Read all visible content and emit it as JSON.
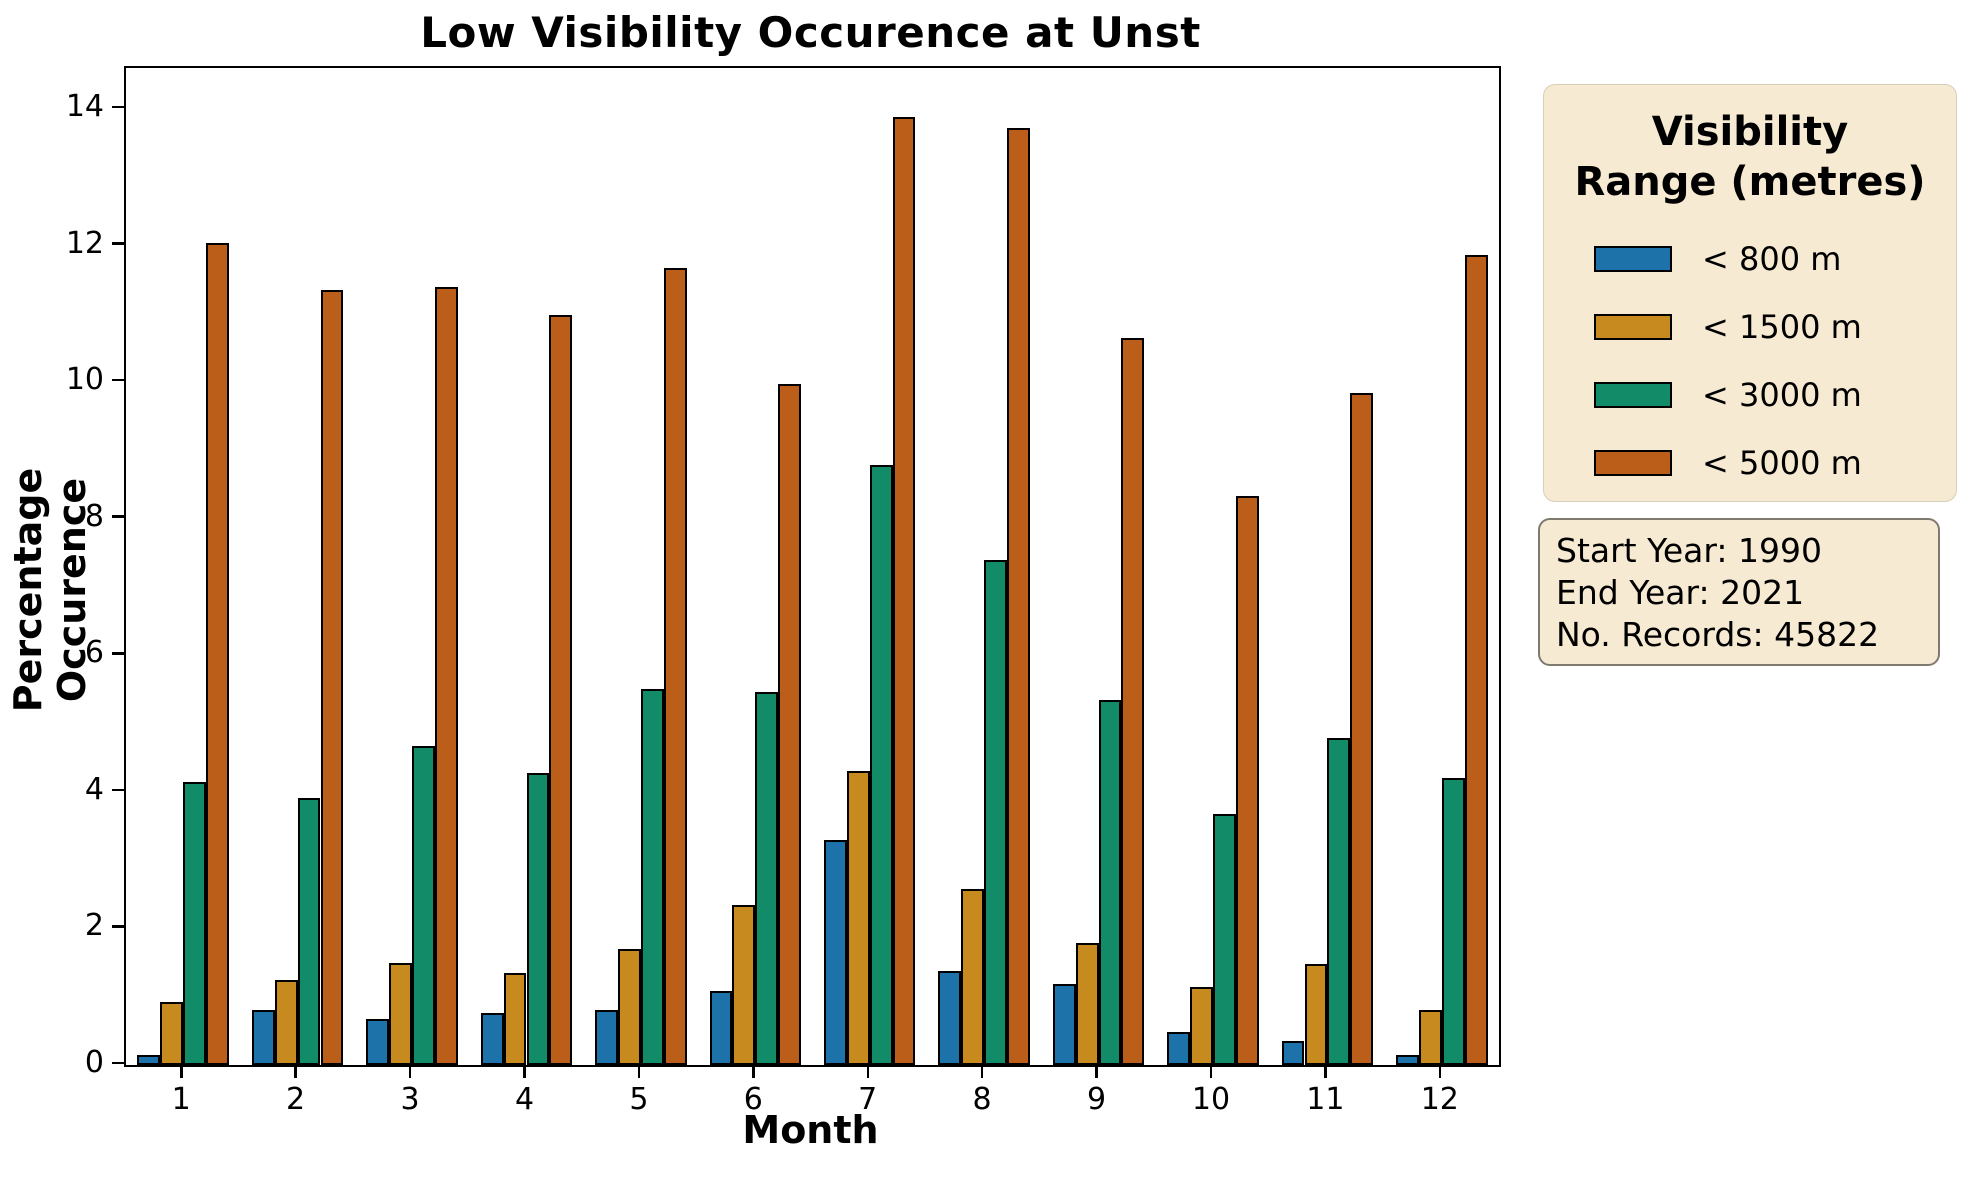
{
  "title": "Low Visibility Occurence at Unst",
  "xlabel": "Month",
  "ylabel": "Percentage Occurence",
  "legend": {
    "title": "Visibility\nRange (metres)",
    "items": [
      {
        "label": "< 800 m",
        "color": "#1d72a9"
      },
      {
        "label": "< 1500 m",
        "color": "#c68a1e"
      },
      {
        "label": "< 3000 m",
        "color": "#128c68"
      },
      {
        "label": "< 5000 m",
        "color": "#ba5e19"
      }
    ]
  },
  "info_box": {
    "lines": [
      "Start Year: 1990",
      "End Year: 2021",
      "No. Records: 45822"
    ]
  },
  "chart_data": {
    "type": "bar",
    "title": "Low Visibility Occurence at Unst",
    "xlabel": "Month",
    "ylabel": "Percentage Occurence",
    "categories": [
      "1",
      "2",
      "3",
      "4",
      "5",
      "6",
      "7",
      "8",
      "9",
      "10",
      "11",
      "12"
    ],
    "series": [
      {
        "name": "< 800 m",
        "color": "#1d72a9",
        "values": [
          0.15,
          0.8,
          0.67,
          0.76,
          0.81,
          1.09,
          3.29,
          1.37,
          1.18,
          0.48,
          0.35,
          0.14
        ]
      },
      {
        "name": "< 1500 m",
        "color": "#c68a1e",
        "values": [
          0.93,
          1.25,
          1.49,
          1.35,
          1.7,
          2.35,
          4.31,
          2.58,
          1.79,
          1.14,
          1.48,
          0.81
        ]
      },
      {
        "name": "< 3000 m",
        "color": "#128c68",
        "values": [
          4.14,
          3.91,
          4.67,
          4.27,
          5.51,
          5.46,
          8.78,
          7.4,
          5.35,
          3.68,
          4.79,
          4.21
        ]
      },
      {
        "name": "< 5000 m",
        "color": "#ba5e19",
        "values": [
          12.04,
          11.35,
          11.4,
          10.99,
          11.67,
          9.98,
          13.88,
          13.72,
          10.65,
          8.34,
          9.84,
          11.86
        ]
      }
    ],
    "ylim": [
      0,
      14.6
    ],
    "yticks": [
      0,
      2,
      4,
      6,
      8,
      10,
      12,
      14
    ],
    "grid": false,
    "legend_title": "Visibility Range (metres)",
    "legend_position": "outside-right",
    "bar_edge_color": "#000000",
    "group_width_fraction": 0.8
  }
}
